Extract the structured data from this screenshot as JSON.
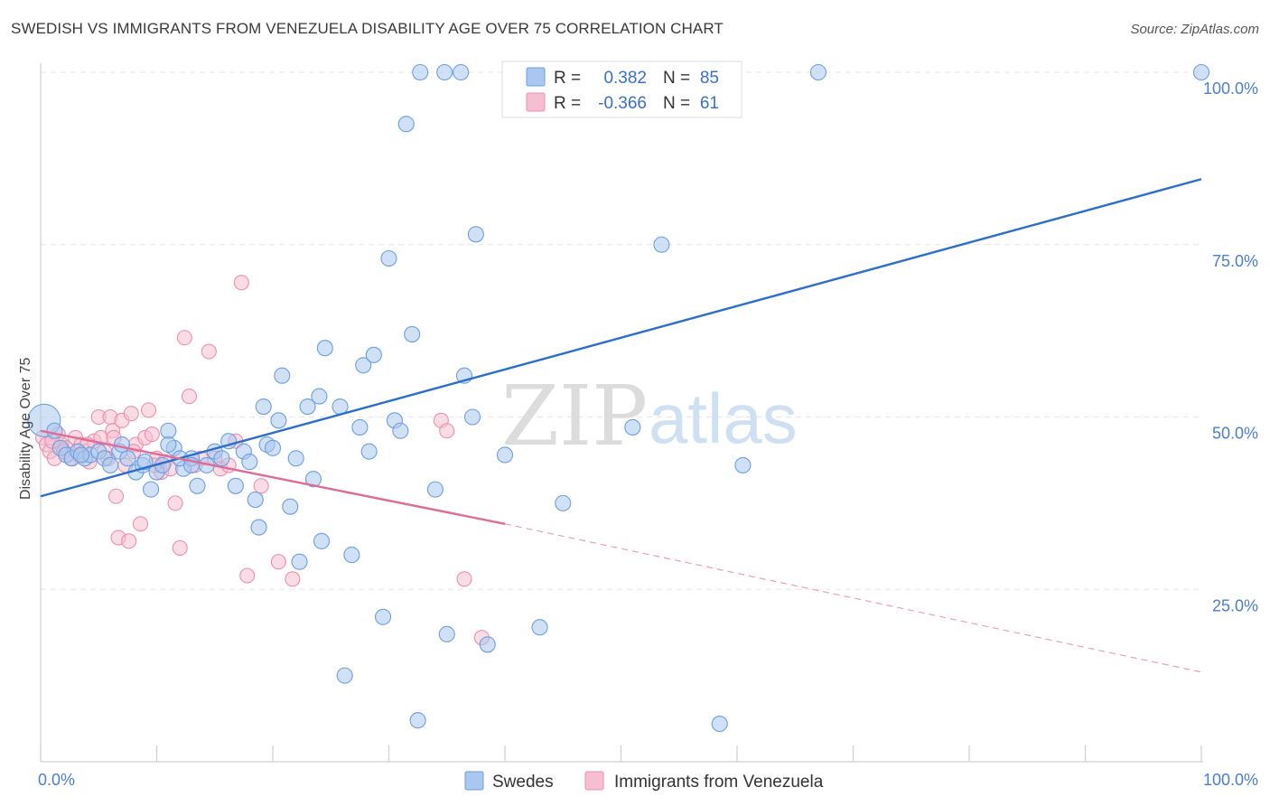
{
  "title": "SWEDISH VS IMMIGRANTS FROM VENEZUELA DISABILITY AGE OVER 75 CORRELATION CHART",
  "source": "Source: ZipAtlas.com",
  "watermark": {
    "zip": "ZIP",
    "atlas": "atlas"
  },
  "colors": {
    "swedes_fill": "#a9c8ef",
    "swedes_stroke": "#6b9fe0",
    "swedes_line": "#2a6fcc",
    "venezuela_fill": "#f6bfd0",
    "venezuela_stroke": "#ec8fae",
    "venezuela_line": "#e26a96",
    "axis_text": "#4a7fcf",
    "grid": "#e6e6e6"
  },
  "legend": {
    "rows": [
      {
        "r_label": "R =",
        "r_value": "0.382",
        "n_label": "N =",
        "n_value": "85"
      },
      {
        "r_label": "R =",
        "r_value": "-0.366",
        "n_label": "N =",
        "n_value": "61"
      }
    ]
  },
  "bottom_legend": [
    "Swedes",
    "Immigrants from Venezuela"
  ],
  "chart_data": {
    "type": "scatter",
    "ylabel": "Disability Age Over 75",
    "xlim": [
      0,
      100
    ],
    "ylim": [
      0,
      100
    ],
    "x_tick_labels": [
      "0.0%",
      "100.0%"
    ],
    "y_tick_labels": [
      {
        "value": 100,
        "label": "100.0%"
      },
      {
        "value": 75,
        "label": "75.0%"
      },
      {
        "value": 50,
        "label": "50.0%"
      },
      {
        "value": 25,
        "label": "25.0%"
      }
    ],
    "grid": true,
    "series": [
      {
        "name": "Swedes",
        "points": [
          [
            0.3,
            49.5
          ],
          [
            1.2,
            48
          ],
          [
            1.7,
            45.5
          ],
          [
            2.2,
            44.5
          ],
          [
            2.7,
            44
          ],
          [
            3.2,
            45
          ],
          [
            3.8,
            44
          ],
          [
            4.3,
            44.5
          ],
          [
            5.0,
            45
          ],
          [
            5.5,
            44
          ],
          [
            6.0,
            43
          ],
          [
            6.8,
            45
          ],
          [
            7.5,
            44
          ],
          [
            8.2,
            42
          ],
          [
            8.8,
            43
          ],
          [
            9.5,
            39.5
          ],
          [
            10.0,
            42
          ],
          [
            10.5,
            43
          ],
          [
            11.0,
            48
          ],
          [
            11.5,
            45.5
          ],
          [
            12.3,
            42.5
          ],
          [
            13.0,
            44
          ],
          [
            13.5,
            40
          ],
          [
            14.3,
            43
          ],
          [
            15.0,
            45
          ],
          [
            15.6,
            44
          ],
          [
            16.2,
            46.5
          ],
          [
            16.8,
            40
          ],
          [
            17.5,
            45
          ],
          [
            18.0,
            43.5
          ],
          [
            18.5,
            38
          ],
          [
            18.8,
            34
          ],
          [
            19.2,
            51.5
          ],
          [
            19.5,
            46
          ],
          [
            20.0,
            45.5
          ],
          [
            20.5,
            49.5
          ],
          [
            20.8,
            56
          ],
          [
            21.5,
            37
          ],
          [
            22.0,
            44
          ],
          [
            22.3,
            29
          ],
          [
            23.0,
            51.5
          ],
          [
            23.5,
            41
          ],
          [
            24.0,
            53
          ],
          [
            24.2,
            32
          ],
          [
            24.5,
            60
          ],
          [
            25.8,
            51.5
          ],
          [
            26.2,
            12.5
          ],
          [
            26.8,
            30
          ],
          [
            27.5,
            48.5
          ],
          [
            27.8,
            57.5
          ],
          [
            28.3,
            45
          ],
          [
            28.7,
            59
          ],
          [
            29.5,
            21
          ],
          [
            30.0,
            73
          ],
          [
            30.5,
            49.5
          ],
          [
            31.0,
            48
          ],
          [
            31.5,
            92.5
          ],
          [
            32.0,
            62
          ],
          [
            32.5,
            6
          ],
          [
            32.7,
            100
          ],
          [
            34.0,
            39.5
          ],
          [
            34.8,
            100
          ],
          [
            35.0,
            18.5
          ],
          [
            36.2,
            100
          ],
          [
            36.5,
            56
          ],
          [
            37.2,
            50
          ],
          [
            37.5,
            76.5
          ],
          [
            38.5,
            17
          ],
          [
            40.0,
            44.5
          ],
          [
            43.0,
            19.5
          ],
          [
            45.0,
            37.5
          ],
          [
            50.0,
            100
          ],
          [
            51.0,
            48.5
          ],
          [
            53.5,
            75
          ],
          [
            54.0,
            100
          ],
          [
            58.5,
            5.5
          ],
          [
            60.5,
            43
          ],
          [
            67.0,
            100
          ],
          [
            100,
            100
          ],
          [
            7.0,
            46
          ],
          [
            3.5,
            44.5
          ],
          [
            9.0,
            43.5
          ],
          [
            12.0,
            44
          ],
          [
            13.0,
            43
          ],
          [
            11.0,
            46
          ]
        ],
        "trendline": [
          [
            0,
            38.5
          ],
          [
            100,
            84.5
          ]
        ]
      },
      {
        "name": "Immigrants from Venezuela",
        "points": [
          [
            0.2,
            47
          ],
          [
            0.5,
            46
          ],
          [
            0.8,
            45
          ],
          [
            1.2,
            44
          ],
          [
            1.5,
            47.5
          ],
          [
            1.8,
            46
          ],
          [
            2.2,
            45.5
          ],
          [
            2.6,
            44
          ],
          [
            3.0,
            47
          ],
          [
            3.5,
            46
          ],
          [
            3.8,
            45
          ],
          [
            4.2,
            43.5
          ],
          [
            4.6,
            46.5
          ],
          [
            5.0,
            50
          ],
          [
            5.2,
            47
          ],
          [
            5.5,
            45
          ],
          [
            5.8,
            44
          ],
          [
            6.0,
            50
          ],
          [
            6.2,
            48
          ],
          [
            6.5,
            38.5
          ],
          [
            6.7,
            32.5
          ],
          [
            7.0,
            49.5
          ],
          [
            7.3,
            43
          ],
          [
            7.6,
            32
          ],
          [
            7.8,
            50.5
          ],
          [
            8.2,
            46
          ],
          [
            8.6,
            34.5
          ],
          [
            9.0,
            47
          ],
          [
            9.3,
            51
          ],
          [
            9.6,
            47.5
          ],
          [
            10.0,
            44
          ],
          [
            10.4,
            42
          ],
          [
            10.7,
            43.5
          ],
          [
            11.2,
            42.5
          ],
          [
            11.6,
            37.5
          ],
          [
            12.0,
            31
          ],
          [
            12.4,
            61.5
          ],
          [
            12.8,
            53
          ],
          [
            13.3,
            43
          ],
          [
            13.8,
            44
          ],
          [
            14.5,
            59.5
          ],
          [
            15.0,
            44
          ],
          [
            15.5,
            42.5
          ],
          [
            16.2,
            43
          ],
          [
            16.8,
            46.5
          ],
          [
            17.3,
            69.5
          ],
          [
            17.8,
            27
          ],
          [
            19.0,
            40
          ],
          [
            20.5,
            29
          ],
          [
            21.7,
            26.5
          ],
          [
            34.5,
            49.5
          ],
          [
            35.0,
            48
          ],
          [
            36.5,
            26.5
          ],
          [
            38.0,
            18
          ],
          [
            2.0,
            45
          ],
          [
            1.0,
            46.5
          ],
          [
            4.0,
            46
          ],
          [
            3.3,
            44.5
          ],
          [
            8.0,
            45
          ],
          [
            9.8,
            43
          ],
          [
            6.3,
            47
          ]
        ],
        "trendline": [
          [
            0,
            48
          ],
          [
            40,
            34.5
          ]
        ],
        "trendline_extension": [
          [
            40,
            34.5
          ],
          [
            100,
            13
          ]
        ]
      }
    ]
  }
}
